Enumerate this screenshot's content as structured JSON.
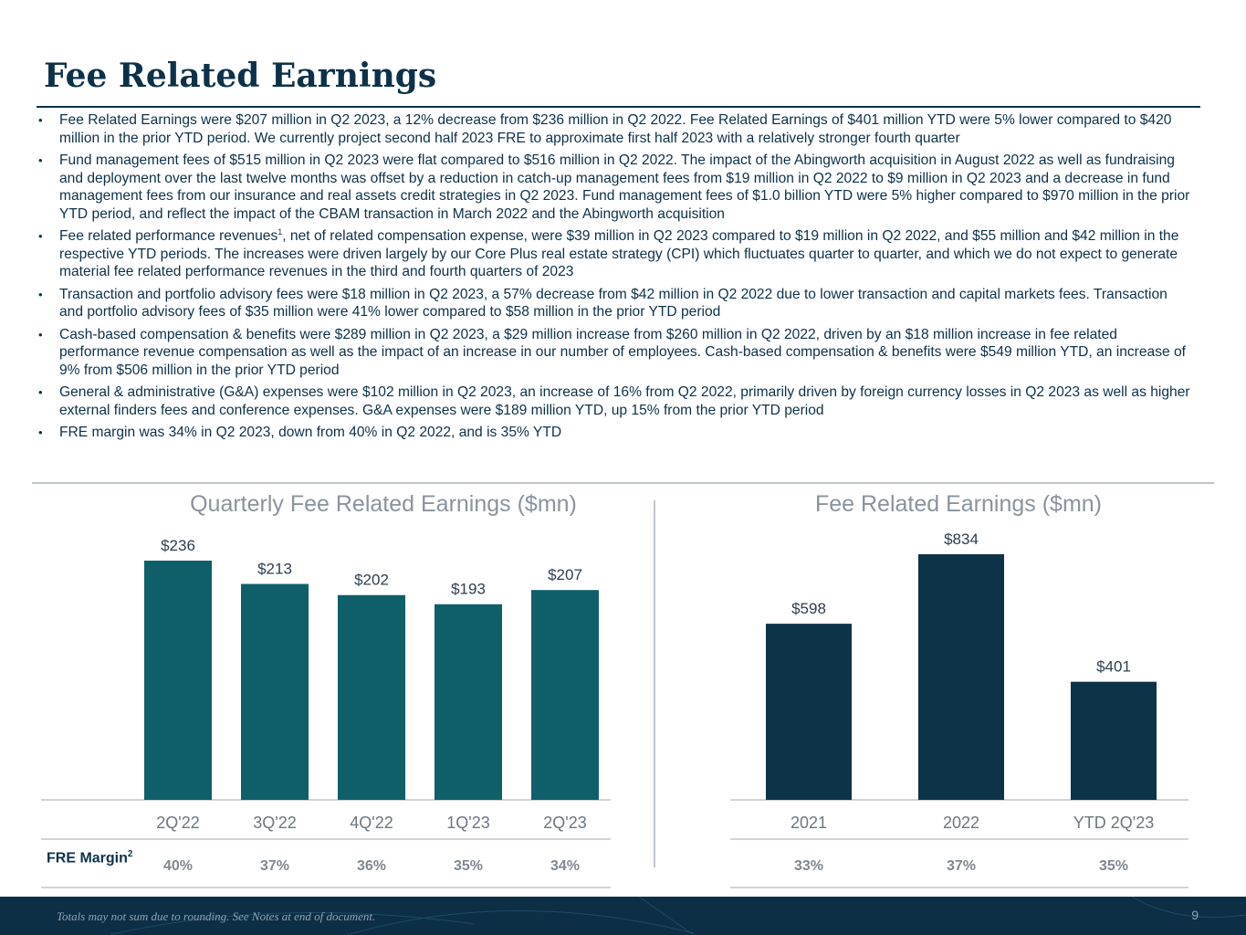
{
  "page": {
    "title": "Fee Related Earnings",
    "bullets": [
      "Fee Related Earnings were $207 million in Q2 2023, a 12% decrease from $236 million in Q2 2022. Fee Related Earnings of $401 million YTD were 5% lower compared to $420 million in the prior YTD period. We currently project second half 2023 FRE to approximate first half 2023 with a relatively stronger fourth quarter",
      "Fund management fees of $515 million in Q2 2023 were flat compared to $516 million in Q2 2022. The impact of the Abingworth acquisition in August 2022 as well as fundraising and deployment over the last twelve months was offset by a reduction in catch-up management fees from $19 million in Q2 2022 to $9 million in Q2 2023 and a decrease in fund management fees from our insurance and real assets credit strategies in Q2 2023. Fund management fees of $1.0 billion YTD were 5% higher compared to $970 million in the prior YTD period, and reflect the impact of the CBAM transaction in March 2022 and the Abingworth acquisition",
      "Transaction and portfolio advisory fees were $18 million in Q2 2023, a 57% decrease from $42 million in Q2 2022 due to lower transaction and capital markets fees. Transaction and portfolio advisory fees of $35 million were 41% lower compared to $58 million in the prior YTD period",
      "Cash-based compensation & benefits were $289 million in Q2 2023, a $29 million  increase from $260 million in Q2 2022, driven by an $18 million increase in fee related performance revenue compensation as well as the impact of an increase in our number of employees. Cash-based compensation & benefits were $549 million YTD, an increase of 9% from $506 million in the prior YTD period",
      "General & administrative (G&A) expenses were $102 million in Q2 2023, an increase of 16% from Q2 2022, primarily driven by foreign currency losses in Q2 2023 as well as higher external finders fees and conference expenses. G&A expenses were $189 million YTD, up 15% from the prior YTD period",
      "FRE margin was 34% in Q2 2023, down from 40% in Q2 2022, and is 35% YTD"
    ],
    "perf_bullet": {
      "before": "Fee related performance revenues",
      "sup": "1",
      "after": ", net of related compensation expense, were $39 million in Q2 2023 compared to $19 million in Q2 2022, and $55 million and $42 million in the respective YTD periods. The increases were driven largely by our Core Plus real estate strategy (CPI) which fluctuates quarter to quarter, and which we do not expect to generate material fee related performance revenues in the third and fourth quarters of 2023"
    },
    "margin_label": "FRE Margin",
    "margin_sup": "2",
    "footnote": "Totals may not sum due to rounding. See Notes at end of document.",
    "page_number": "9"
  },
  "colors": {
    "navy": "#0d3149",
    "teal_bar": "#0f5f6b",
    "dark_bar": "#0c3347",
    "muted": "#8a939c"
  },
  "chart_data": [
    {
      "type": "bar",
      "title": "Quarterly Fee Related Earnings ($mn)",
      "categories": [
        "2Q'22",
        "3Q'22",
        "4Q'22",
        "1Q'23",
        "2Q'23"
      ],
      "values": [
        236,
        213,
        202,
        193,
        207
      ],
      "labels": [
        "$236",
        "$213",
        "$202",
        "$193",
        "$207"
      ],
      "margins": [
        "40%",
        "37%",
        "36%",
        "35%",
        "34%"
      ],
      "ylim": [
        0,
        236
      ]
    },
    {
      "type": "bar",
      "title": "Fee Related Earnings ($mn)",
      "categories": [
        "2021",
        "2022",
        "YTD 2Q'23"
      ],
      "values": [
        598,
        834,
        401
      ],
      "labels": [
        "$598",
        "$834",
        "$401"
      ],
      "margins": [
        "33%",
        "37%",
        "35%"
      ],
      "ylim": [
        0,
        834
      ]
    }
  ]
}
